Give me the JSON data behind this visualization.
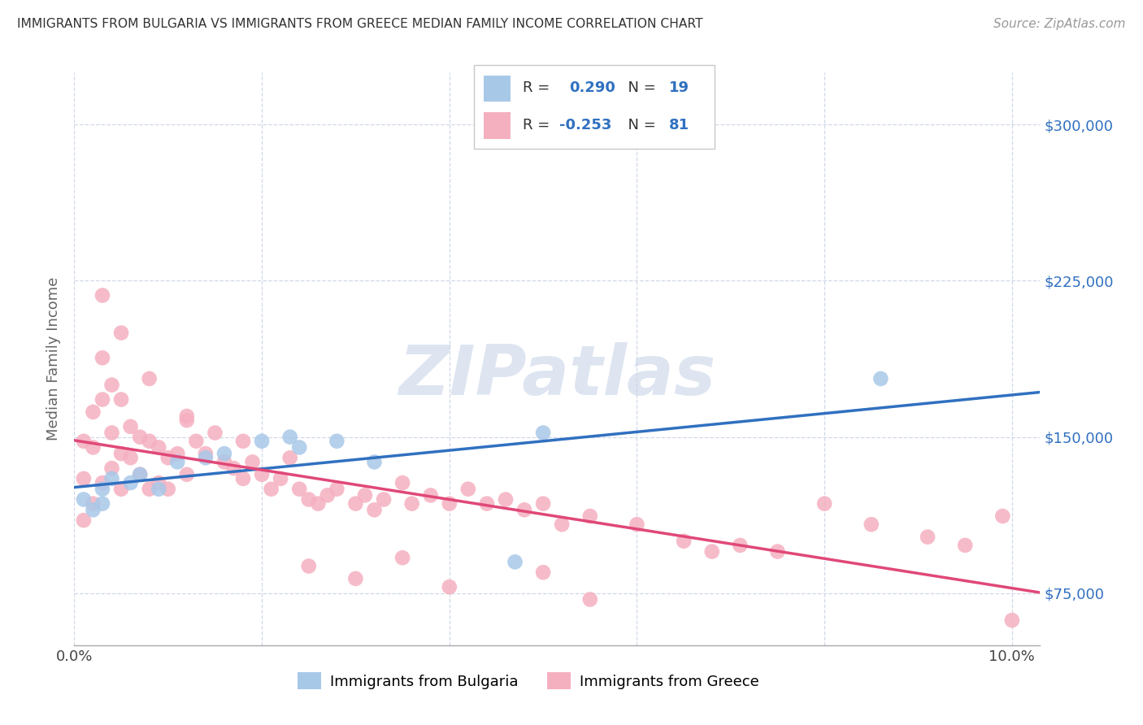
{
  "title": "IMMIGRANTS FROM BULGARIA VS IMMIGRANTS FROM GREECE MEDIAN FAMILY INCOME CORRELATION CHART",
  "source": "Source: ZipAtlas.com",
  "ylabel": "Median Family Income",
  "xlim": [
    0.0,
    0.103
  ],
  "ylim": [
    50000,
    325000
  ],
  "yticks": [
    75000,
    150000,
    225000,
    300000
  ],
  "ytick_labels": [
    "$75,000",
    "$150,000",
    "$225,000",
    "$300,000"
  ],
  "xticks": [
    0.0,
    0.02,
    0.04,
    0.06,
    0.08,
    0.1
  ],
  "xtick_labels": [
    "0.0%",
    "",
    "",
    "",
    "",
    "10.0%"
  ],
  "background_color": "#ffffff",
  "watermark": "ZIPatlas",
  "legend_R_bulgaria": "0.290",
  "legend_N_bulgaria": "19",
  "legend_R_greece": "-0.253",
  "legend_N_greece": "81",
  "bulgaria_color": "#a8c8e8",
  "greece_color": "#f5b0c0",
  "bulgaria_line_color": "#3070c0",
  "greece_line_color": "#e04878",
  "grid_color": "#d0d8e8",
  "bulgaria_x": [
    0.001,
    0.002,
    0.003,
    0.003,
    0.004,
    0.006,
    0.007,
    0.009,
    0.011,
    0.014,
    0.016,
    0.02,
    0.023,
    0.024,
    0.028,
    0.032,
    0.047,
    0.05,
    0.086
  ],
  "bulgaria_y": [
    120000,
    115000,
    118000,
    125000,
    130000,
    128000,
    132000,
    125000,
    138000,
    140000,
    142000,
    148000,
    150000,
    145000,
    148000,
    138000,
    90000,
    152000,
    178000
  ],
  "greece_x": [
    0.001,
    0.001,
    0.001,
    0.002,
    0.002,
    0.002,
    0.003,
    0.003,
    0.003,
    0.004,
    0.004,
    0.004,
    0.005,
    0.005,
    0.005,
    0.006,
    0.006,
    0.007,
    0.007,
    0.008,
    0.008,
    0.009,
    0.009,
    0.01,
    0.01,
    0.011,
    0.012,
    0.012,
    0.013,
    0.014,
    0.015,
    0.016,
    0.017,
    0.018,
    0.019,
    0.02,
    0.021,
    0.022,
    0.023,
    0.024,
    0.025,
    0.026,
    0.027,
    0.028,
    0.03,
    0.031,
    0.032,
    0.033,
    0.035,
    0.036,
    0.038,
    0.04,
    0.042,
    0.044,
    0.046,
    0.048,
    0.05,
    0.052,
    0.055,
    0.06,
    0.065,
    0.068,
    0.071,
    0.075,
    0.08,
    0.085,
    0.091,
    0.095,
    0.099,
    0.003,
    0.005,
    0.008,
    0.012,
    0.018,
    0.025,
    0.03,
    0.035,
    0.04,
    0.05,
    0.055,
    0.1
  ],
  "greece_y": [
    130000,
    148000,
    110000,
    162000,
    145000,
    118000,
    188000,
    168000,
    128000,
    175000,
    152000,
    135000,
    168000,
    142000,
    125000,
    155000,
    140000,
    150000,
    132000,
    148000,
    125000,
    145000,
    128000,
    140000,
    125000,
    142000,
    158000,
    132000,
    148000,
    142000,
    152000,
    138000,
    135000,
    130000,
    138000,
    132000,
    125000,
    130000,
    140000,
    125000,
    120000,
    118000,
    122000,
    125000,
    118000,
    122000,
    115000,
    120000,
    128000,
    118000,
    122000,
    118000,
    125000,
    118000,
    120000,
    115000,
    118000,
    108000,
    112000,
    108000,
    100000,
    95000,
    98000,
    95000,
    118000,
    108000,
    102000,
    98000,
    112000,
    218000,
    200000,
    178000,
    160000,
    148000,
    88000,
    82000,
    92000,
    78000,
    85000,
    72000,
    62000
  ]
}
